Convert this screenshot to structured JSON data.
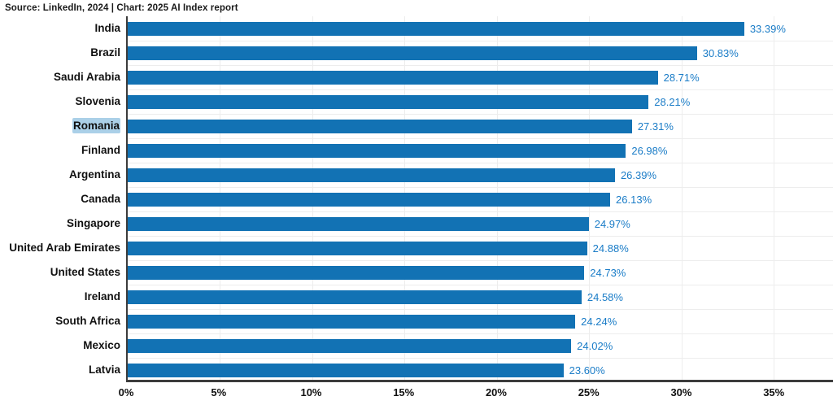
{
  "source_line": "Source: LinkedIn, 2024 | Chart: 2025 AI Index report",
  "chart_data": {
    "type": "bar",
    "orientation": "horizontal",
    "title": "",
    "xlabel": "",
    "ylabel": "",
    "categories": [
      "India",
      "Brazil",
      "Saudi Arabia",
      "Slovenia",
      "Romania",
      "Finland",
      "Argentina",
      "Canada",
      "Singapore",
      "United Arab Emirates",
      "United States",
      "Ireland",
      "South Africa",
      "Mexico",
      "Latvia"
    ],
    "values": [
      33.39,
      30.83,
      28.71,
      28.21,
      27.31,
      26.98,
      26.39,
      26.13,
      24.97,
      24.88,
      24.73,
      24.58,
      24.24,
      24.02,
      23.6
    ],
    "value_labels": [
      "33.39%",
      "30.83%",
      "28.71%",
      "28.21%",
      "27.31%",
      "26.98%",
      "26.39%",
      "26.13%",
      "24.97%",
      "24.88%",
      "24.73%",
      "24.58%",
      "24.24%",
      "24.02%",
      "23.60%"
    ],
    "x_ticks": [
      0,
      5,
      10,
      15,
      20,
      25,
      30,
      35
    ],
    "x_tick_labels": [
      "0%",
      "5%",
      "10%",
      "15%",
      "20%",
      "25%",
      "30%",
      "35%"
    ],
    "xlim": [
      0,
      38.2
    ],
    "grid": "on",
    "legend": "none",
    "highlighted_category": "Romania",
    "colors": {
      "bar": "#1272b4",
      "value_label": "#1a7cc7",
      "axis": "#3c3c3c",
      "gridline": "#ededed",
      "highlight_bg": "#abd0e8",
      "text": "#111111"
    }
  }
}
